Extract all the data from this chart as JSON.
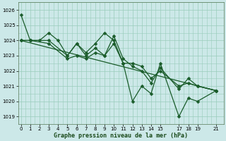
{
  "xlabel": "Graphe pression niveau de la mer (hPa)",
  "bg_color": "#cce8e8",
  "grid_color": "#99ccbb",
  "line_color": "#1a5c2a",
  "ylim": [
    1018.5,
    1026.5
  ],
  "xlim": [
    -0.3,
    21.8
  ],
  "yticks": [
    1019,
    1020,
    1021,
    1022,
    1023,
    1024,
    1025,
    1026
  ],
  "xticks": [
    0,
    1,
    2,
    3,
    4,
    5,
    6,
    7,
    8,
    9,
    10,
    11,
    12,
    13,
    14,
    15,
    17,
    18,
    19,
    21
  ],
  "series": [
    {
      "x": [
        0,
        1,
        2,
        3,
        4,
        5,
        6,
        7,
        8,
        9,
        10,
        11,
        12,
        13,
        14,
        15,
        17,
        18,
        19,
        21
      ],
      "y": [
        1025.7,
        1024.0,
        1024.0,
        1024.5,
        1024.0,
        1023.0,
        1023.8,
        1023.2,
        1023.8,
        1024.5,
        1024.0,
        1022.5,
        1020.0,
        1021.0,
        1020.5,
        1022.5,
        1019.0,
        1020.2,
        1020.0,
        1020.7
      ],
      "marker": "D",
      "ms": 2.5
    },
    {
      "x": [
        0,
        1,
        3,
        5,
        6,
        7,
        8,
        9,
        10,
        11,
        12,
        13,
        14,
        15,
        17,
        18,
        19,
        21
      ],
      "y": [
        1024.0,
        1024.0,
        1024.0,
        1023.0,
        1023.8,
        1023.0,
        1023.5,
        1023.0,
        1023.8,
        1022.5,
        1022.5,
        1022.3,
        1021.5,
        1022.0,
        1021.0,
        1021.2,
        1021.0,
        1020.7
      ],
      "marker": "D",
      "ms": 2.5
    },
    {
      "x": [
        0,
        1,
        3,
        5,
        6,
        7,
        8,
        9,
        10,
        11,
        12,
        13,
        14,
        15,
        17,
        18,
        19,
        21
      ],
      "y": [
        1024.0,
        1024.0,
        1023.8,
        1022.8,
        1023.0,
        1022.8,
        1023.2,
        1023.0,
        1024.3,
        1022.8,
        1022.3,
        1022.0,
        1021.2,
        1022.2,
        1020.8,
        1021.5,
        1021.0,
        1020.7
      ],
      "marker": "D",
      "ms": 2.5
    },
    {
      "x": [
        0,
        21
      ],
      "y": [
        1024.0,
        1020.7
      ],
      "marker": null,
      "ms": 0
    }
  ]
}
